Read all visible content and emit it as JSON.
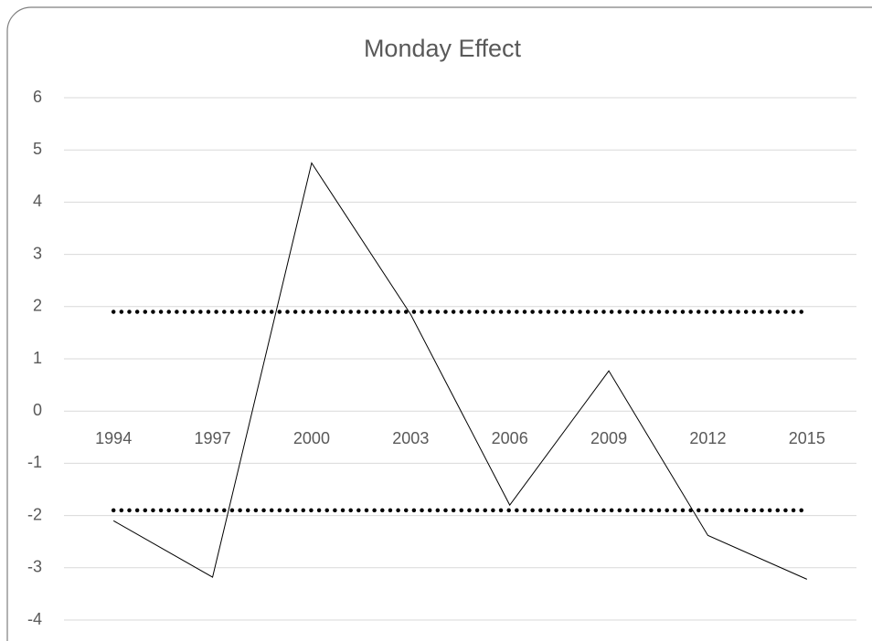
{
  "chart_data": {
    "type": "line",
    "title": "Monday Effect",
    "categories": [
      "1994",
      "1997",
      "2000",
      "2003",
      "2006",
      "2009",
      "2012",
      "2015"
    ],
    "series": [
      {
        "color": "#000000",
        "style": "solid",
        "values": [
          -2.1,
          -3.18,
          4.75,
          1.85,
          -1.8,
          0.77,
          -2.38,
          -3.22
        ]
      },
      {
        "color": "#000000",
        "style": "dotted",
        "values": [
          1.9,
          1.9,
          1.9,
          1.9,
          1.9,
          1.9,
          1.9,
          1.9
        ]
      },
      {
        "color": "#000000",
        "style": "dotted",
        "values": [
          -1.9,
          -1.9,
          -1.9,
          -1.9,
          -1.9,
          -1.9,
          -1.9,
          -1.9
        ]
      }
    ],
    "ylim": [
      -4,
      6
    ],
    "yticks": [
      -4,
      -3,
      -2,
      -1,
      0,
      1,
      2,
      3,
      4,
      5,
      6
    ],
    "grid": true
  }
}
